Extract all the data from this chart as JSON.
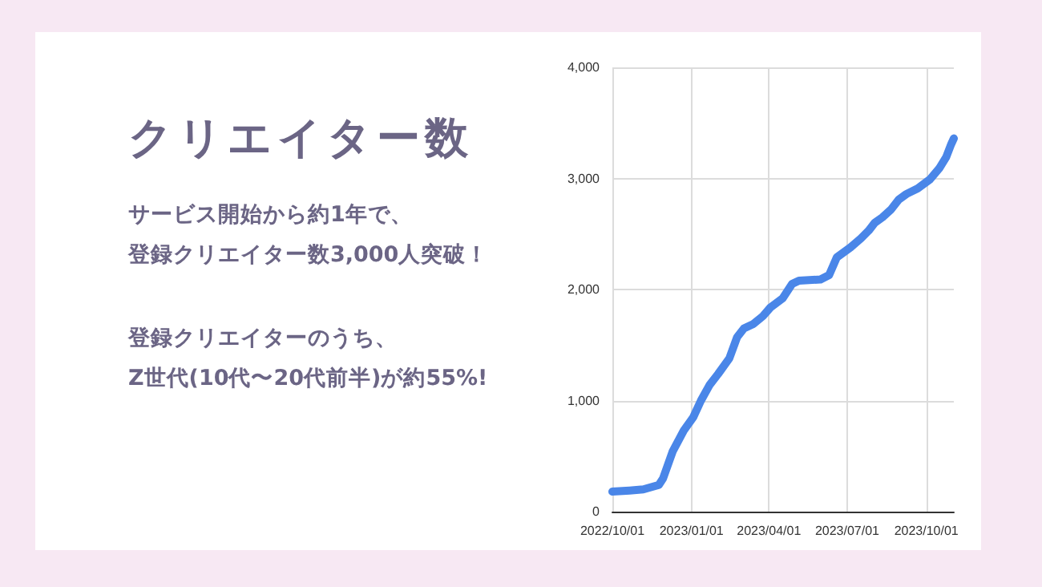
{
  "chart_data": {
    "type": "line",
    "title": "クリエイター数",
    "annotations": [
      "サービス開始から約1年で、",
      "登録クリエイター数3,000人突破！",
      "登録クリエイターのうち、",
      "Z世代(10代〜20代前半)が約55%!"
    ],
    "x": [
      "2022-10-01",
      "2022-10-21",
      "2022-11-06",
      "2022-11-15",
      "2022-11-24",
      "2022-11-29",
      "2022-12-10",
      "2022-12-23",
      "2023-01-03",
      "2023-01-12",
      "2023-01-22",
      "2023-02-01",
      "2023-02-14",
      "2023-02-23",
      "2023-03-03",
      "2023-03-14",
      "2023-03-25",
      "2023-04-03",
      "2023-04-17",
      "2023-04-28",
      "2023-05-06",
      "2023-05-31",
      "2023-06-10",
      "2023-06-19",
      "2023-07-05",
      "2023-07-17",
      "2023-07-26",
      "2023-08-02",
      "2023-08-11",
      "2023-08-21",
      "2023-08-30",
      "2023-09-08",
      "2023-09-21",
      "2023-10-05",
      "2023-10-16",
      "2023-10-24",
      "2023-10-30",
      "2023-11-02"
    ],
    "series": [
      {
        "color": "#4a86e8",
        "values": [
          180,
          190,
          200,
          220,
          240,
          300,
          540,
          730,
          850,
          1000,
          1140,
          1240,
          1380,
          1570,
          1650,
          1690,
          1760,
          1840,
          1920,
          2050,
          2080,
          2090,
          2130,
          2290,
          2380,
          2460,
          2530,
          2600,
          2650,
          2720,
          2810,
          2860,
          2910,
          2990,
          3090,
          3190,
          3310,
          3360
        ]
      }
    ],
    "xlim": [
      "2022-10-01",
      "2023-11-02"
    ],
    "xticks": [
      {
        "value": "2022-10-01",
        "label": "2022/10/01"
      },
      {
        "value": "2023-01-01",
        "label": "2023/01/01"
      },
      {
        "value": "2023-04-01",
        "label": "2023/04/01"
      },
      {
        "value": "2023-07-01",
        "label": "2023/07/01"
      },
      {
        "value": "2023-10-01",
        "label": "2023/10/01"
      }
    ],
    "ylim": [
      0,
      4000
    ],
    "yticks": [
      0,
      {
        "value": 1000,
        "label": "1,000"
      },
      {
        "value": 2000,
        "label": "2,000"
      },
      {
        "value": 3000,
        "label": "3,000"
      },
      {
        "value": 4000,
        "label": "4,000"
      }
    ],
    "grid": true,
    "marker": "none",
    "line_style": "solid"
  }
}
